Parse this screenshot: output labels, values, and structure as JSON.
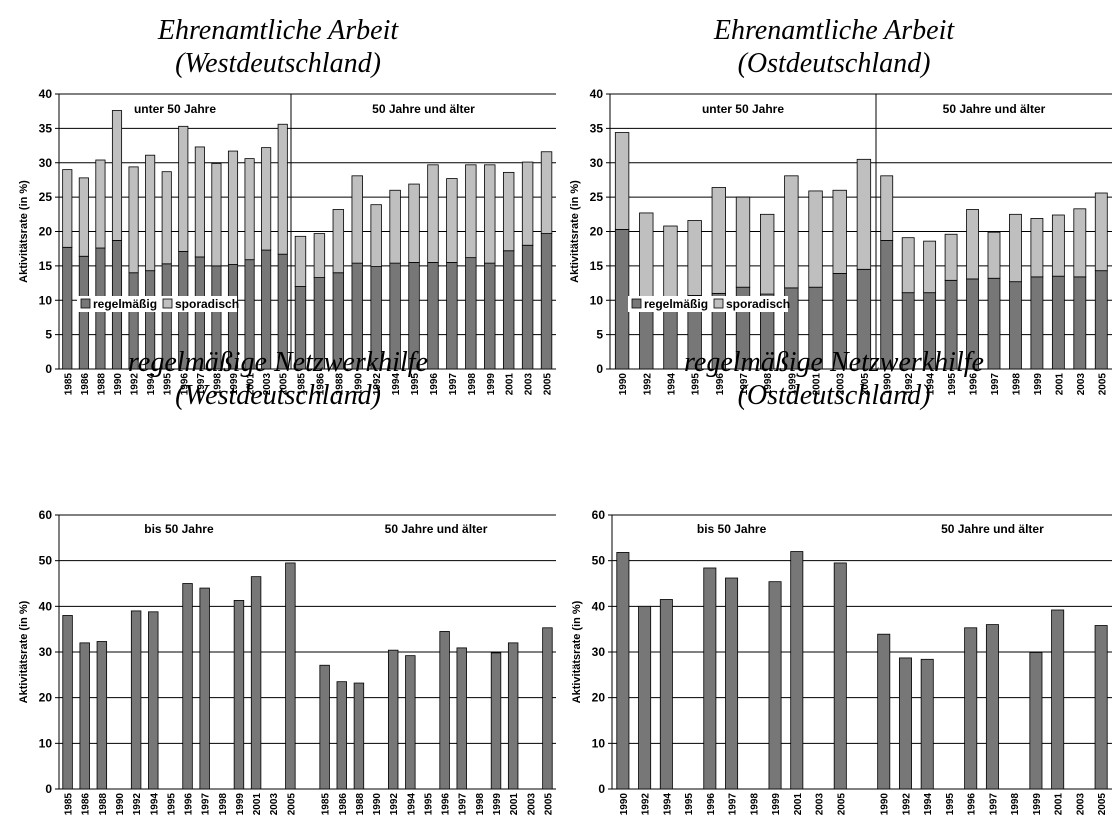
{
  "palette": {
    "regular": "#777777",
    "sporadic": "#bfbfbf",
    "edge": "#000000",
    "grid": "#000000"
  },
  "chart_data": [
    {
      "id": "west-volunteer",
      "type": "bar",
      "stacked": true,
      "title": [
        "Ehrenamtliche Arbeit",
        "(Westdeutschland)"
      ],
      "ylabel": "Aktivitätsrate (in %)",
      "ylim": [
        0,
        40
      ],
      "yticks": [
        0,
        5,
        10,
        15,
        20,
        25,
        30,
        35,
        40
      ],
      "grid": true,
      "legend": {
        "position": "bottom-left",
        "items": [
          "regelmäßig",
          "sporadisch"
        ]
      },
      "groups": [
        {
          "label": "unter 50 Jahre",
          "categories": [
            "1985",
            "1986",
            "1988",
            "1990",
            "1992",
            "1994",
            "1995",
            "1996",
            "1997",
            "1998",
            "1999",
            "2001",
            "2003",
            "2005"
          ],
          "series": [
            {
              "name": "regelmäßig",
              "values": [
                17.7,
                16.4,
                17.6,
                18.7,
                14.0,
                14.3,
                15.3,
                17.1,
                16.3,
                15.0,
                15.2,
                15.9,
                17.3,
                16.7
              ]
            },
            {
              "name": "sporadisch",
              "values": [
                11.3,
                11.4,
                12.8,
                18.9,
                15.4,
                16.8,
                13.4,
                18.2,
                16.0,
                14.9,
                16.5,
                14.7,
                14.9,
                18.9
              ]
            }
          ]
        },
        {
          "label": "50 Jahre und älter",
          "categories": [
            "1985",
            "1986",
            "1988",
            "1990",
            "1992",
            "1994",
            "1995",
            "1996",
            "1997",
            "1998",
            "1999",
            "2001",
            "2003",
            "2005"
          ],
          "series": [
            {
              "name": "regelmäßig",
              "values": [
                12.0,
                13.3,
                14.0,
                15.4,
                14.9,
                15.4,
                15.5,
                15.5,
                15.5,
                16.2,
                15.4,
                17.2,
                18.0,
                19.7
              ]
            },
            {
              "name": "sporadisch",
              "values": [
                7.3,
                6.4,
                9.2,
                12.7,
                9.0,
                10.6,
                11.4,
                14.2,
                12.2,
                13.5,
                14.3,
                11.4,
                12.1,
                11.9
              ]
            }
          ]
        }
      ]
    },
    {
      "id": "east-volunteer",
      "type": "bar",
      "stacked": true,
      "title": [
        "Ehrenamtliche Arbeit",
        "(Ostdeutschland)"
      ],
      "ylabel": "Aktivitätsrate (in %)",
      "ylim": [
        0,
        40
      ],
      "yticks": [
        0,
        5,
        10,
        15,
        20,
        25,
        30,
        35,
        40
      ],
      "grid": true,
      "legend": {
        "position": "bottom-left",
        "items": [
          "regelmäßig",
          "sporadisch"
        ]
      },
      "groups": [
        {
          "label": "unter 50 Jahre",
          "categories": [
            "1990",
            "1992",
            "1994",
            "1995",
            "1996",
            "1997",
            "1998",
            "1999",
            "2001",
            "2003",
            "2005"
          ],
          "series": [
            {
              "name": "regelmäßig",
              "values": [
                20.3,
                10.4,
                9.8,
                10.7,
                11.0,
                11.9,
                10.9,
                11.8,
                11.9,
                13.9,
                14.5
              ]
            },
            {
              "name": "sporadisch",
              "values": [
                14.1,
                12.3,
                11.0,
                10.9,
                15.4,
                13.1,
                11.6,
                16.3,
                14.0,
                12.1,
                16.0
              ]
            }
          ]
        },
        {
          "label": "50 Jahre und älter",
          "categories": [
            "1990",
            "1992",
            "1994",
            "1995",
            "1996",
            "1997",
            "1998",
            "1999",
            "2001",
            "2003",
            "2005"
          ],
          "series": [
            {
              "name": "regelmäßig",
              "values": [
                18.7,
                11.1,
                11.1,
                12.9,
                13.1,
                13.2,
                12.7,
                13.4,
                13.5,
                13.4,
                14.3
              ]
            },
            {
              "name": "sporadisch",
              "values": [
                9.4,
                8.0,
                7.5,
                6.7,
                10.1,
                6.7,
                9.8,
                8.5,
                8.9,
                9.9,
                11.3
              ]
            }
          ]
        }
      ]
    },
    {
      "id": "west-network",
      "type": "bar",
      "stacked": false,
      "title": [
        "regelmäßige Netzwerkhilfe",
        "(Westdeutschland)"
      ],
      "ylabel": "Aktivitätsrate (in %)",
      "ylim": [
        0,
        60
      ],
      "yticks": [
        0,
        10,
        20,
        30,
        40,
        50,
        60
      ],
      "grid": true,
      "groups": [
        {
          "label": "bis 50 Jahre",
          "categories": [
            "1985",
            "1986",
            "1988",
            "1990",
            "1992",
            "1994",
            "1995",
            "1996",
            "1997",
            "1998",
            "1999",
            "2001",
            "2003",
            "2005"
          ],
          "series": [
            {
              "name": "",
              "values": [
                38.0,
                32.0,
                32.3,
                null,
                39.0,
                38.8,
                null,
                45.0,
                44.0,
                null,
                41.3,
                46.5,
                null,
                49.5
              ]
            }
          ]
        },
        {
          "label": "50 Jahre und älter",
          "categories": [
            "1985",
            "1986",
            "1988",
            "1990",
            "1992",
            "1994",
            "1995",
            "1996",
            "1997",
            "1998",
            "1999",
            "2001",
            "2003",
            "2005"
          ],
          "series": [
            {
              "name": "",
              "values": [
                27.1,
                23.5,
                23.2,
                null,
                30.4,
                29.2,
                null,
                34.5,
                30.9,
                null,
                29.8,
                32.0,
                null,
                35.3
              ]
            }
          ]
        }
      ]
    },
    {
      "id": "east-network",
      "type": "bar",
      "stacked": false,
      "title": [
        "regelmäßige Netzwerkhilfe",
        "(Ostdeutschland)"
      ],
      "ylabel": "Aktivitätsrate (in %)",
      "ylim": [
        0,
        60
      ],
      "yticks": [
        0,
        10,
        20,
        30,
        40,
        50,
        60
      ],
      "grid": true,
      "groups": [
        {
          "label": "bis 50 Jahre",
          "categories": [
            "1990",
            "1992",
            "1994",
            "1995",
            "1996",
            "1997",
            "1998",
            "1999",
            "2001",
            "2003",
            "2005"
          ],
          "series": [
            {
              "name": "",
              "values": [
                51.8,
                40.0,
                41.5,
                null,
                48.4,
                46.2,
                null,
                45.4,
                52.0,
                null,
                49.5
              ]
            }
          ]
        },
        {
          "label": "50 Jahre und älter",
          "categories": [
            "1990",
            "1992",
            "1994",
            "1995",
            "1996",
            "1997",
            "1998",
            "1999",
            "2001",
            "2003",
            "2005"
          ],
          "series": [
            {
              "name": "",
              "values": [
                33.9,
                28.7,
                28.4,
                null,
                35.3,
                36.0,
                null,
                29.9,
                39.2,
                null,
                35.8
              ]
            }
          ]
        }
      ]
    }
  ]
}
